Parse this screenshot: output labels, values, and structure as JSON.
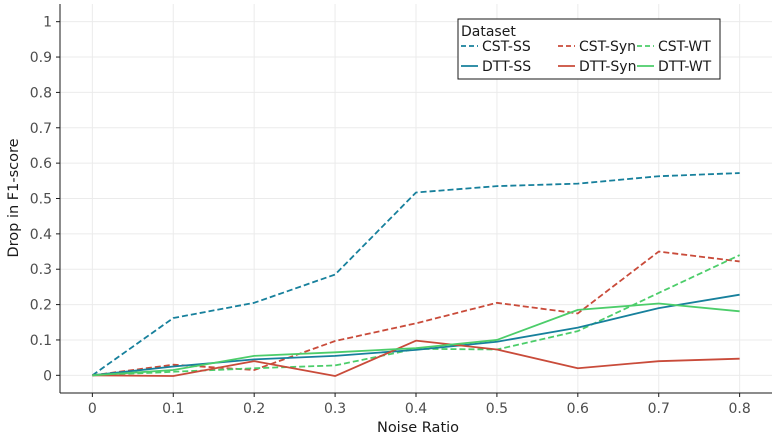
{
  "chart_data": {
    "type": "line",
    "xlabel": "Noise Ratio",
    "ylabel": "Drop in F1-score",
    "x": [
      0,
      0.1,
      0.2,
      0.3,
      0.4,
      0.5,
      0.6,
      0.7,
      0.8
    ],
    "x_tick_labels": [
      "0",
      "0.1",
      "0.2",
      "0.3",
      "0.4",
      "0.5",
      "0.6",
      "0.7",
      "0.8"
    ],
    "xlim": [
      -0.04,
      0.84
    ],
    "ylim": [
      -0.05,
      1.05
    ],
    "y_ticks": [
      0,
      0.1,
      0.2,
      0.3,
      0.4,
      0.5,
      0.6,
      0.7,
      0.8,
      0.9,
      1
    ],
    "y_tick_labels": [
      "0",
      "0.1",
      "0.2",
      "0.3",
      "0.4",
      "0.5",
      "0.6",
      "0.7",
      "0.8",
      "0.9",
      "1"
    ],
    "grid": true,
    "legend": {
      "title": "Dataset",
      "position": "top-right"
    },
    "series": [
      {
        "name": "CST-SS",
        "color": "#17809c",
        "dash": "dashed",
        "values": [
          0,
          0.162,
          0.205,
          0.285,
          0.517,
          0.535,
          0.542,
          0.563,
          0.572
        ]
      },
      {
        "name": "CST-Syn",
        "color": "#c94b3a",
        "dash": "dashed",
        "values": [
          0,
          0.03,
          0.015,
          0.097,
          0.147,
          0.205,
          0.175,
          0.35,
          0.322
        ]
      },
      {
        "name": "CST-WT",
        "color": "#4ccd6a",
        "dash": "dashed",
        "values": [
          0,
          0.01,
          0.02,
          0.028,
          0.075,
          0.073,
          0.125,
          0.233,
          0.34
        ]
      },
      {
        "name": "DTT-SS",
        "color": "#17809c",
        "dash": "solid",
        "values": [
          0,
          0.025,
          0.045,
          0.055,
          0.072,
          0.095,
          0.135,
          0.19,
          0.228
        ]
      },
      {
        "name": "DTT-Syn",
        "color": "#c94b3a",
        "dash": "solid",
        "values": [
          0,
          -0.002,
          0.04,
          -0.002,
          0.098,
          0.073,
          0.02,
          0.04,
          0.047
        ]
      },
      {
        "name": "DTT-WT",
        "color": "#4ccd6a",
        "dash": "solid",
        "values": [
          0,
          0.015,
          0.055,
          0.065,
          0.077,
          0.1,
          0.185,
          0.203,
          0.181
        ]
      }
    ]
  }
}
